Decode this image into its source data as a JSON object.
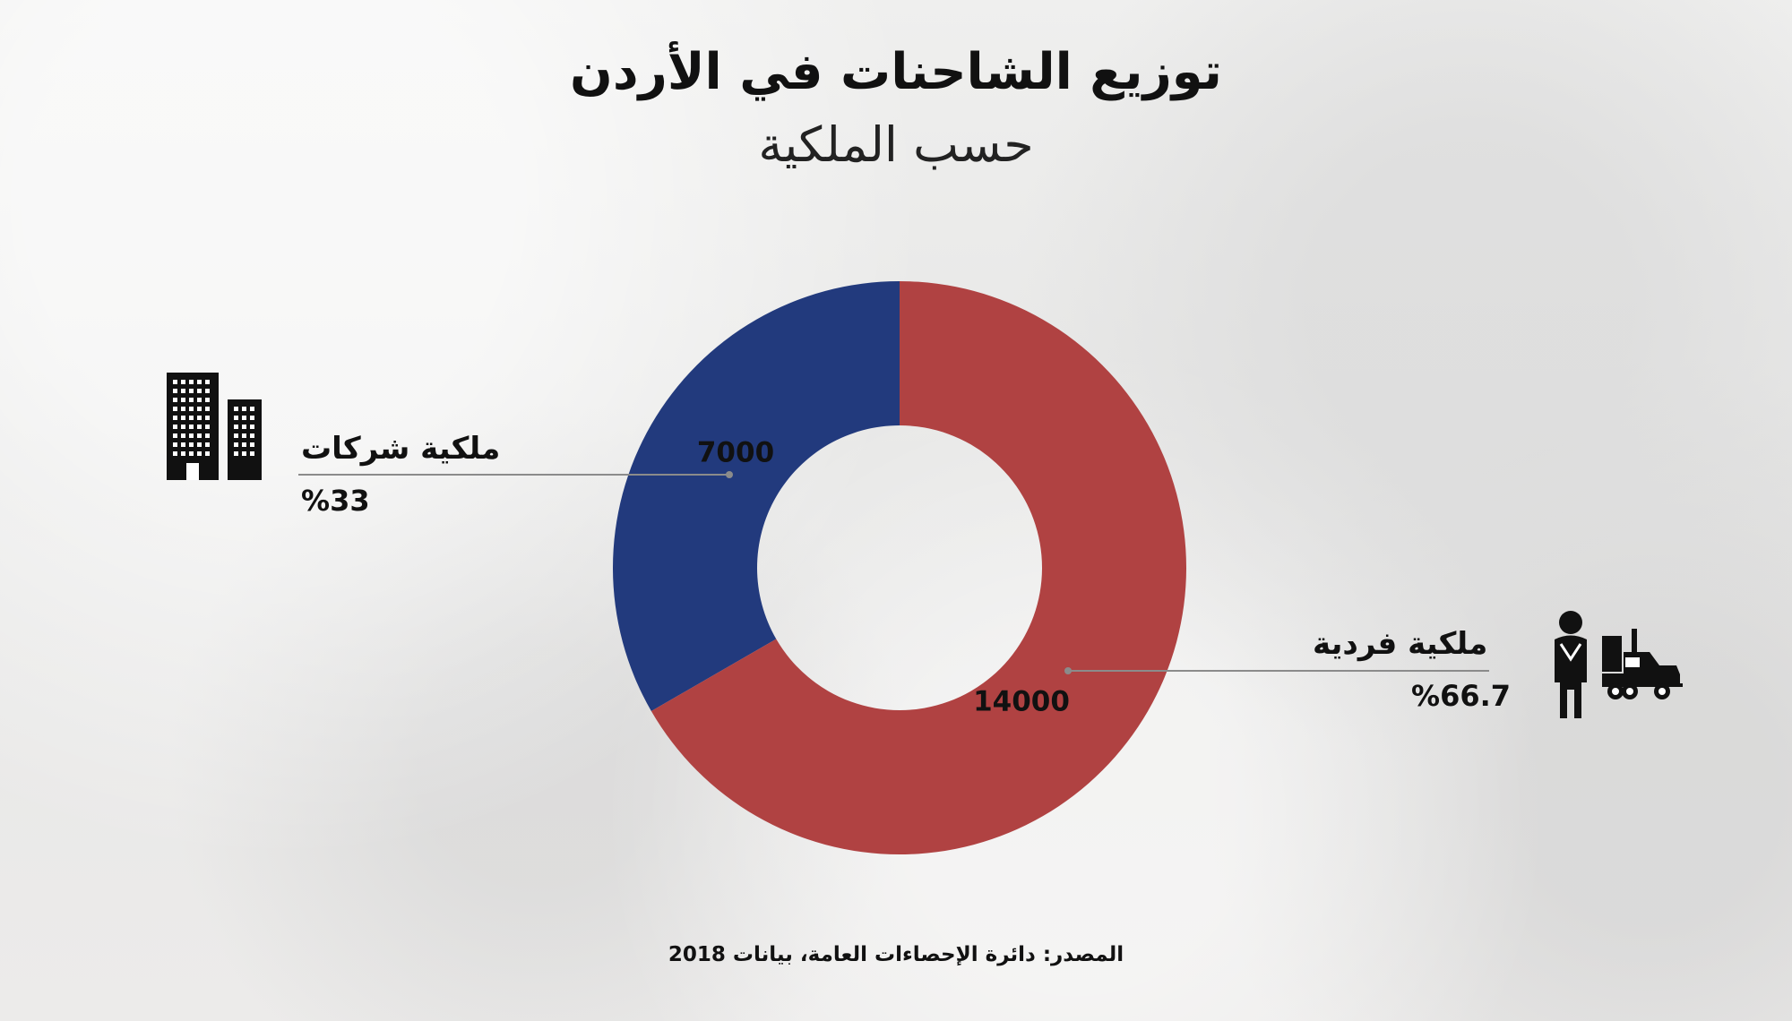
{
  "page": {
    "title": "توزيع الشاحنات في الأردن",
    "subtitle": "حسب الملكية",
    "source": "المصدر: دائرة الإحصاءات العامة، بيانات 2018"
  },
  "labels": {
    "company": {
      "name": "ملكية شركات",
      "percent": "%33"
    },
    "individual": {
      "name": "ملكية فردية",
      "percent": "%66.7"
    }
  },
  "icons": {
    "company": "building-icon",
    "individual": "driver-truck-icon"
  },
  "colors": {
    "company": "#223a7d",
    "individual": "#b04242",
    "text": "#111111",
    "leader": "#8b8b8b"
  },
  "chart_data": {
    "type": "pie",
    "title": "توزيع الشاحنات في الأردن",
    "subtitle": "حسب الملكية",
    "series": [
      {
        "name": "ملكية شركات",
        "value": 7000,
        "percent": 33,
        "label": "7000",
        "color": "#223a7d"
      },
      {
        "name": "ملكية فردية",
        "value": 14000,
        "percent": 66.7,
        "label": "14000",
        "color": "#b04242"
      }
    ]
  }
}
